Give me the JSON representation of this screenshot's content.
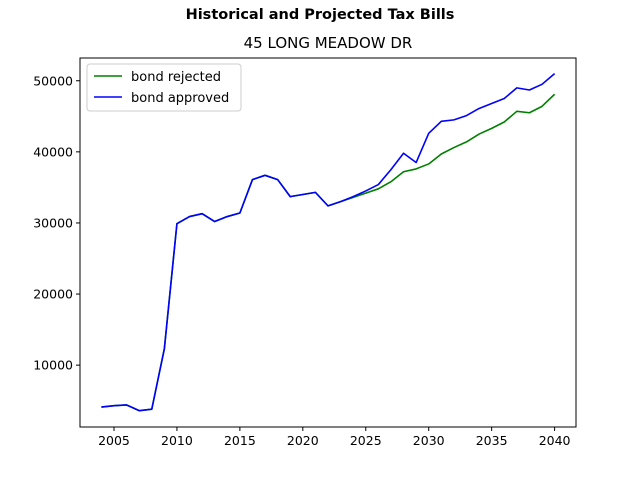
{
  "figure": {
    "suptitle": "Historical and Projected Tax Bills",
    "title": "45 LONG MEADOW DR"
  },
  "chart_data": {
    "type": "line",
    "xlim": [
      2002.3,
      2041.7
    ],
    "ylim": [
      1300,
      53200
    ],
    "xticks": [
      2005,
      2010,
      2015,
      2020,
      2025,
      2030,
      2035,
      2040
    ],
    "yticks": [
      10000,
      20000,
      30000,
      40000,
      50000
    ],
    "legend_position": "upper-left",
    "grid": false,
    "series": [
      {
        "name": "bond rejected",
        "color": "#008000",
        "x": [
          2004,
          2005,
          2006,
          2007,
          2008,
          2009,
          2010,
          2011,
          2012,
          2013,
          2014,
          2015,
          2016,
          2017,
          2018,
          2019,
          2020,
          2021,
          2022,
          2023,
          2024,
          2025,
          2026,
          2027,
          2028,
          2029,
          2030,
          2031,
          2032,
          2033,
          2034,
          2035,
          2036,
          2037,
          2038,
          2039,
          2040
        ],
        "values": [
          4100,
          4300,
          4400,
          3600,
          3800,
          12300,
          29900,
          30900,
          31300,
          30200,
          30900,
          31400,
          36100,
          36700,
          36100,
          33700,
          34000,
          34300,
          32400,
          33000,
          33600,
          34200,
          34800,
          35800,
          37200,
          37600,
          38300,
          39700,
          40600,
          41400,
          42500,
          43300,
          44200,
          45700,
          45500,
          46400,
          48100
        ]
      },
      {
        "name": "bond approved",
        "color": "#0000ff",
        "x": [
          2004,
          2005,
          2006,
          2007,
          2008,
          2009,
          2010,
          2011,
          2012,
          2013,
          2014,
          2015,
          2016,
          2017,
          2018,
          2019,
          2020,
          2021,
          2022,
          2023,
          2024,
          2025,
          2026,
          2027,
          2028,
          2029,
          2030,
          2031,
          2032,
          2033,
          2034,
          2035,
          2036,
          2037,
          2038,
          2039,
          2040
        ],
        "values": [
          4100,
          4300,
          4400,
          3600,
          3800,
          12300,
          29900,
          30900,
          31300,
          30200,
          30900,
          31400,
          36100,
          36700,
          36100,
          33700,
          34000,
          34300,
          32400,
          33000,
          33700,
          34500,
          35400,
          37500,
          39800,
          38500,
          42600,
          44300,
          44500,
          45100,
          46100,
          46800,
          47500,
          49000,
          48700,
          49500,
          51000
        ]
      }
    ]
  }
}
